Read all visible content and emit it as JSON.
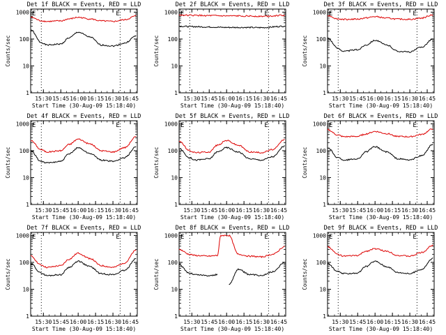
{
  "panel_ylabel": "Counts/sec",
  "panel_xlabel": "Start Time (30-Aug-09 15:18:40)",
  "x_ticks": [
    "15:30",
    "15:45",
    "16:00",
    "16:15",
    "16:30",
    "16:45"
  ],
  "y_ticks": [
    "1",
    "10",
    "100",
    "1000"
  ],
  "corner_marks": [
    "E",
    "E"
  ],
  "colors": {
    "events": "#000000",
    "lld": "#dd0000"
  },
  "chart_data": [
    {
      "type": "line",
      "title": "Det 1f BLACK = Events, RED = LLD",
      "ylim": [
        1,
        1300
      ],
      "yscale": "log",
      "x": "time",
      "grid": false,
      "series": [
        {
          "name": "Events",
          "color": "#000000",
          "times": [
            "15:19",
            "15:28",
            "15:33",
            "15:45",
            "15:52",
            "16:00",
            "16:10",
            "16:20",
            "16:30",
            "16:40",
            "16:50"
          ],
          "values": [
            220,
            75,
            60,
            65,
            110,
            180,
            120,
            60,
            55,
            70,
            130
          ]
        },
        {
          "name": "LLD",
          "color": "#dd0000",
          "times": [
            "15:19",
            "15:28",
            "15:33",
            "15:45",
            "15:52",
            "16:00",
            "16:10",
            "16:20",
            "16:30",
            "16:40",
            "16:50"
          ],
          "values": [
            650,
            480,
            450,
            470,
            560,
            640,
            560,
            470,
            450,
            520,
            720
          ]
        }
      ]
    },
    {
      "type": "line",
      "title": "Det 2f BLACK = Events, RED = LLD",
      "ylim": [
        1,
        1300
      ],
      "yscale": "log",
      "x": "time",
      "grid": false,
      "series": [
        {
          "name": "Events",
          "color": "#000000",
          "times": [
            "15:19",
            "15:30",
            "15:45",
            "16:00",
            "16:15",
            "16:30",
            "16:50"
          ],
          "values": [
            300,
            290,
            280,
            270,
            270,
            265,
            300
          ]
        },
        {
          "name": "LLD",
          "color": "#dd0000",
          "times": [
            "15:19",
            "15:30",
            "15:45",
            "16:00",
            "16:15",
            "16:30",
            "16:50"
          ],
          "values": [
            780,
            760,
            740,
            720,
            720,
            700,
            760
          ]
        }
      ]
    },
    {
      "type": "line",
      "title": "Det 3f BLACK = Events, RED = LLD",
      "ylim": [
        1,
        1300
      ],
      "yscale": "log",
      "x": "time",
      "grid": false,
      "series": [
        {
          "name": "Events",
          "color": "#000000",
          "times": [
            "15:19",
            "15:28",
            "15:33",
            "15:45",
            "15:52",
            "16:00",
            "16:10",
            "16:20",
            "16:30",
            "16:40",
            "16:50"
          ],
          "values": [
            110,
            45,
            35,
            40,
            60,
            90,
            60,
            35,
            33,
            50,
            100
          ]
        },
        {
          "name": "LLD",
          "color": "#dd0000",
          "times": [
            "15:19",
            "15:28",
            "15:33",
            "15:45",
            "15:52",
            "16:00",
            "16:10",
            "16:20",
            "16:30",
            "16:40",
            "16:50"
          ],
          "values": [
            750,
            560,
            540,
            550,
            610,
            680,
            600,
            550,
            540,
            600,
            800
          ]
        }
      ]
    },
    {
      "type": "line",
      "title": "Det 4f BLACK = Events, RED = LLD",
      "ylim": [
        1,
        1300
      ],
      "yscale": "log",
      "x": "time",
      "grid": false,
      "series": [
        {
          "name": "Events",
          "color": "#000000",
          "times": [
            "15:19",
            "15:28",
            "15:33",
            "15:45",
            "15:52",
            "16:00",
            "16:10",
            "16:20",
            "16:30",
            "16:40",
            "16:50"
          ],
          "values": [
            100,
            40,
            35,
            40,
            75,
            130,
            80,
            45,
            40,
            55,
            140
          ]
        },
        {
          "name": "LLD",
          "color": "#dd0000",
          "times": [
            "15:19",
            "15:28",
            "15:33",
            "15:45",
            "15:52",
            "16:00",
            "16:10",
            "16:20",
            "16:30",
            "16:40",
            "16:50"
          ],
          "values": [
            240,
            110,
            90,
            100,
            170,
            270,
            180,
            100,
            90,
            130,
            330
          ]
        }
      ]
    },
    {
      "type": "line",
      "title": "Det 5f BLACK = Events, RED = LLD",
      "ylim": [
        1,
        1300
      ],
      "yscale": "log",
      "x": "time",
      "grid": false,
      "series": [
        {
          "name": "Events",
          "color": "#000000",
          "times": [
            "15:19",
            "15:28",
            "15:33",
            "15:45",
            "15:52",
            "16:00",
            "16:10",
            "16:20",
            "16:30",
            "16:40",
            "16:50"
          ],
          "values": [
            120,
            55,
            45,
            50,
            90,
            130,
            90,
            50,
            45,
            60,
            150
          ]
        },
        {
          "name": "LLD",
          "color": "#dd0000",
          "times": [
            "15:19",
            "15:28",
            "15:33",
            "15:45",
            "15:52",
            "16:00",
            "16:10",
            "16:20",
            "16:30",
            "16:40",
            "16:50"
          ],
          "values": [
            230,
            100,
            85,
            90,
            160,
            240,
            160,
            90,
            85,
            110,
            260
          ]
        }
      ]
    },
    {
      "type": "line",
      "title": "Det 6f BLACK = Events, RED = LLD",
      "ylim": [
        1,
        1300
      ],
      "yscale": "log",
      "x": "time",
      "grid": false,
      "series": [
        {
          "name": "Events",
          "color": "#000000",
          "times": [
            "15:19",
            "15:28",
            "15:33",
            "15:45",
            "15:52",
            "16:00",
            "16:10",
            "16:20",
            "16:30",
            "16:40",
            "16:50"
          ],
          "values": [
            130,
            55,
            45,
            50,
            90,
            140,
            90,
            50,
            45,
            65,
            170
          ]
        },
        {
          "name": "LLD",
          "color": "#dd0000",
          "times": [
            "15:19",
            "15:28",
            "15:33",
            "15:45",
            "15:52",
            "16:00",
            "16:10",
            "16:20",
            "16:30",
            "16:40",
            "16:50"
          ],
          "values": [
            600,
            380,
            330,
            340,
            420,
            520,
            430,
            340,
            330,
            400,
            650
          ]
        }
      ]
    },
    {
      "type": "line",
      "title": "Det 7f BLACK = Events, RED = LLD",
      "ylim": [
        1,
        1300
      ],
      "yscale": "log",
      "x": "time",
      "grid": false,
      "series": [
        {
          "name": "Events",
          "color": "#000000",
          "times": [
            "15:19",
            "15:28",
            "15:33",
            "15:45",
            "15:52",
            "16:00",
            "16:10",
            "16:20",
            "16:30",
            "16:40",
            "16:50"
          ],
          "values": [
            90,
            40,
            32,
            35,
            65,
            110,
            70,
            38,
            35,
            50,
            140
          ]
        },
        {
          "name": "LLD",
          "color": "#dd0000",
          "times": [
            "15:19",
            "15:28",
            "15:33",
            "15:45",
            "15:52",
            "16:00",
            "16:10",
            "16:20",
            "16:30",
            "16:40",
            "16:50"
          ],
          "values": [
            170,
            80,
            65,
            75,
            130,
            220,
            140,
            75,
            65,
            95,
            280
          ]
        }
      ]
    },
    {
      "type": "line",
      "title": "Det 8f BLACK = Events, RED = LLD",
      "ylim": [
        1,
        1300
      ],
      "yscale": "log",
      "x": "time",
      "grid": false,
      "series": [
        {
          "name": "Events",
          "color": "#000000",
          "times": [
            "15:19",
            "15:28",
            "15:33",
            "15:45",
            "15:52",
            "15:55",
            "16:02",
            "16:10",
            "16:20",
            "16:30",
            "16:40",
            "16:50"
          ],
          "values": [
            80,
            40,
            35,
            32,
            35,
            null,
            15,
            55,
            35,
            33,
            45,
            100
          ]
        },
        {
          "name": "LLD",
          "color": "#dd0000",
          "times": [
            "15:19",
            "15:28",
            "15:33",
            "15:45",
            "15:52",
            "15:55",
            "16:02",
            "16:10",
            "16:20",
            "16:30",
            "16:40",
            "16:50"
          ],
          "values": [
            300,
            200,
            180,
            170,
            180,
            1000,
            1000,
            200,
            170,
            160,
            200,
            380
          ]
        }
      ]
    },
    {
      "type": "line",
      "title": "Det 9f BLACK = Events, RED = LLD",
      "ylim": [
        1,
        1300
      ],
      "yscale": "log",
      "x": "time",
      "grid": false,
      "series": [
        {
          "name": "Events",
          "color": "#000000",
          "times": [
            "15:19",
            "15:28",
            "15:33",
            "15:45",
            "15:52",
            "16:00",
            "16:10",
            "16:20",
            "16:30",
            "16:40",
            "16:50"
          ],
          "values": [
            90,
            45,
            38,
            40,
            70,
            110,
            70,
            42,
            38,
            55,
            140
          ]
        },
        {
          "name": "LLD",
          "color": "#dd0000",
          "times": [
            "15:19",
            "15:28",
            "15:33",
            "15:45",
            "15:52",
            "16:00",
            "16:10",
            "16:20",
            "16:30",
            "16:40",
            "16:50"
          ],
          "values": [
            380,
            200,
            170,
            180,
            260,
            320,
            260,
            180,
            170,
            230,
            430
          ]
        }
      ]
    }
  ]
}
